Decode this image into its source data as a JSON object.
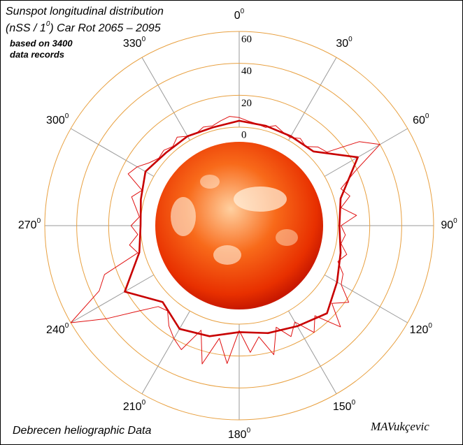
{
  "chart_data": {
    "type": "polar",
    "title": {
      "line1": "Sunspot longitudinal distribution",
      "line2_start": "(nSS / 1",
      "line2_sup": "0",
      "line2_end": ") Car Rot 2065 – 2095"
    },
    "subtitle": [
      "based on 3400",
      "data records"
    ],
    "footer": "Debrecen heliographic Data",
    "signature": "MAVukçevic",
    "ylim": [
      0,
      60
    ],
    "yticks": [
      0,
      20,
      40,
      60
    ],
    "thetaticks": [
      0,
      30,
      60,
      90,
      120,
      150,
      180,
      210,
      240,
      270,
      300,
      330
    ],
    "theta_tick_sup": "0",
    "grid_color": "#e8a040",
    "spoke_color": "#999999",
    "series": [
      {
        "color": "#e01010",
        "width": 1,
        "theta": [
          0,
          5,
          10,
          15,
          20,
          25,
          30,
          35,
          40,
          45,
          50,
          55,
          60,
          65,
          70,
          75,
          80,
          85,
          90,
          95,
          100,
          105,
          110,
          115,
          120,
          125,
          130,
          135,
          140,
          145,
          150,
          155,
          160,
          165,
          170,
          175,
          180,
          185,
          190,
          195,
          200,
          205,
          210,
          215,
          220,
          225,
          230,
          235,
          240,
          245,
          250,
          255,
          260,
          265,
          270,
          275,
          280,
          285,
          290,
          295,
          300,
          305,
          310,
          315,
          320,
          325,
          330,
          335,
          340,
          345,
          350,
          355
        ],
        "values": [
          6,
          4,
          3,
          2,
          5,
          3,
          2,
          5,
          3,
          8,
          10,
          30,
          40,
          18,
          6,
          10,
          3,
          12,
          2,
          5,
          3,
          8,
          4,
          10,
          12,
          22,
          14,
          28,
          12,
          20,
          8,
          15,
          6,
          22,
          9,
          18,
          4,
          25,
          10,
          28,
          8,
          24,
          20,
          15,
          8,
          10,
          22,
          40,
          60,
          35,
          28,
          4,
          8,
          2,
          6,
          1,
          4,
          8,
          3,
          15,
          12,
          7,
          4,
          5,
          3,
          6,
          3,
          2,
          4,
          3,
          5,
          7
        ]
      },
      {
        "color": "#c80000",
        "width": 2.6,
        "theta": [
          0,
          15,
          30,
          45,
          60,
          75,
          90,
          105,
          120,
          135,
          150,
          165,
          180,
          195,
          210,
          225,
          240,
          255,
          270,
          285,
          300,
          315,
          330,
          345
        ],
        "values": [
          4,
          3,
          3,
          4,
          24,
          4,
          1,
          4,
          9,
          16,
          11,
          8,
          5,
          10,
          13,
          6,
          21,
          3,
          0,
          2,
          6,
          3,
          3,
          2
        ]
      }
    ]
  }
}
